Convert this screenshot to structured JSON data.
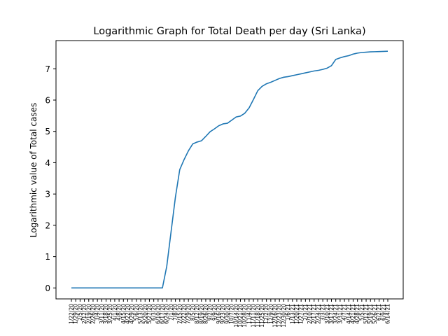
{
  "chart_data": {
    "type": "line",
    "title": "Logarithmic Graph for Total Death per day (Sri Lanka)",
    "xlabel": "",
    "ylabel": "Logarithmic value of Total cases",
    "ylim": [
      -0.35,
      7.9
    ],
    "yticks": [
      0,
      1,
      2,
      3,
      4,
      5,
      6,
      7
    ],
    "grid": false,
    "line_color": "#1f77b4",
    "x": [
      "1/22/20",
      "1/29/20",
      "2/5/20",
      "2/12/20",
      "2/19/20",
      "2/26/20",
      "3/4/20",
      "3/11/20",
      "3/18/20",
      "3/25/20",
      "4/1/20",
      "4/8/20",
      "4/15/20",
      "4/22/20",
      "4/29/20",
      "5/6/20",
      "5/13/20",
      "5/20/20",
      "5/27/20",
      "6/3/20",
      "6/10/20",
      "6/17/20",
      "6/24/20",
      "7/1/20",
      "7/8/20",
      "7/15/20",
      "7/22/20",
      "7/29/20",
      "8/5/20",
      "8/12/20",
      "8/19/20",
      "8/26/20",
      "9/2/20",
      "9/9/20",
      "9/16/20",
      "9/23/20",
      "9/30/20",
      "10/7/20",
      "10/14/20",
      "10/21/20",
      "10/28/20",
      "11/4/20",
      "11/11/20",
      "11/18/20",
      "11/25/20",
      "12/2/20",
      "12/9/20",
      "12/16/20",
      "12/23/20",
      "12/30/20",
      "1/6/21",
      "1/13/21",
      "1/20/21",
      "1/27/21",
      "2/3/21",
      "2/10/21",
      "2/17/21",
      "2/24/21",
      "3/3/21",
      "3/10/21",
      "3/17/21",
      "3/24/21",
      "3/31/21",
      "4/7/21",
      "4/14/21",
      "4/21/21",
      "4/28/21",
      "5/5/21",
      "5/12/21",
      "5/19/21",
      "5/26/21",
      "6/2/21",
      "6/9/21",
      "6/14/21"
    ],
    "y": [
      0,
      0,
      0,
      0,
      0,
      0,
      0,
      0,
      0,
      0,
      0,
      0,
      0,
      0,
      0,
      0,
      0,
      0,
      0,
      0,
      0,
      0,
      0.69,
      1.8,
      2.9,
      3.78,
      4.1,
      4.38,
      4.6,
      4.66,
      4.7,
      4.84,
      4.99,
      5.08,
      5.18,
      5.24,
      5.26,
      5.36,
      5.46,
      5.49,
      5.58,
      5.75,
      6.02,
      6.3,
      6.44,
      6.52,
      6.57,
      6.63,
      6.69,
      6.73,
      6.75,
      6.78,
      6.81,
      6.84,
      6.87,
      6.9,
      6.93,
      6.95,
      6.98,
      7.02,
      7.1,
      7.3,
      7.35,
      7.39,
      7.42,
      7.47,
      7.5,
      7.52,
      7.53,
      7.54,
      7.545,
      7.55,
      7.555,
      7.56
    ]
  }
}
